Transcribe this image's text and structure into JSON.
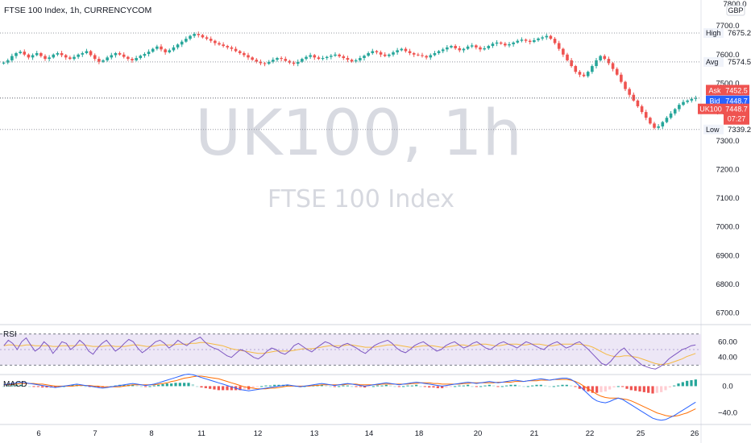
{
  "header": {
    "title": "FTSE 100 Index, 1h, CURRENCYCOM",
    "currency_top": "7800.0",
    "currency": "GBP"
  },
  "watermark": {
    "symbol": "UK100, 1h",
    "name": "FTSE 100 Index"
  },
  "colors": {
    "up": "#26a69a",
    "down": "#ef5350",
    "ask": "#ef5350",
    "bid": "#2962ff",
    "rsi_line": "#7e57c2",
    "rsi_ma": "#f5b942",
    "rsi_band": "#ede7f6",
    "macd_line": "#2962ff",
    "signal_line": "#ff6d00"
  },
  "levels": [
    {
      "label": "High",
      "price": 7675.2,
      "text": "7675.2"
    },
    {
      "label": "Avg",
      "price": 7574.5,
      "text": "7574.5"
    },
    {
      "label": "Low",
      "price": 7339.2,
      "text": "7339.2"
    }
  ],
  "tags": {
    "ask": {
      "label": "Ask",
      "price": 7452.5,
      "text": "7452.5"
    },
    "bid": {
      "label": "Bid",
      "price": 7448.7,
      "text": "7448.7"
    },
    "last": {
      "label": "UK100",
      "price": 7448.7,
      "text": "7448.7",
      "countdown": "07:27"
    }
  },
  "panes": {
    "rsi": {
      "label": "RSI",
      "ticks": [
        "60.00",
        "40.00"
      ]
    },
    "macd": {
      "label": "MACD",
      "ticks": [
        "0.0",
        "−40.0"
      ]
    }
  },
  "chart_data": {
    "type": "candlestick",
    "title": "FTSE 100 Index, 1h, CURRENCYCOM",
    "price_ticks": [
      7700.0,
      7600.0,
      7500.0,
      7400.0,
      7300.0,
      7200.0,
      7100.0,
      7000.0,
      6900.0,
      6800.0,
      6700.0
    ],
    "price_tick_labels": [
      "7700.0",
      "7600.0",
      "7500.0",
      "7400.0",
      "7300.0",
      "7200.0",
      "7100.0",
      "7000.0",
      "6900.0",
      "6800.0",
      "6700.0"
    ],
    "ylim": [
      6660,
      7790
    ],
    "x_tick_labels": [
      "6",
      "7",
      "8",
      "11",
      "12",
      "13",
      "14",
      "18",
      "20",
      "21",
      "22",
      "25",
      "26"
    ],
    "close_series": [
      7572,
      7580,
      7595,
      7605,
      7610,
      7600,
      7590,
      7598,
      7605,
      7595,
      7585,
      7590,
      7600,
      7605,
      7598,
      7590,
      7585,
      7592,
      7600,
      7605,
      7612,
      7598,
      7585,
      7575,
      7580,
      7590,
      7598,
      7605,
      7600,
      7592,
      7585,
      7580,
      7588,
      7596,
      7602,
      7610,
      7620,
      7628,
      7618,
      7608,
      7615,
      7625,
      7635,
      7645,
      7655,
      7665,
      7672,
      7668,
      7660,
      7655,
      7648,
      7640,
      7635,
      7630,
      7625,
      7620,
      7612,
      7605,
      7598,
      7590,
      7582,
      7575,
      7570,
      7568,
      7575,
      7582,
      7588,
      7585,
      7578,
      7572,
      7568,
      7575,
      7585,
      7592,
      7598,
      7590,
      7585,
      7588,
      7592,
      7596,
      7600,
      7594,
      7588,
      7582,
      7576,
      7580,
      7588,
      7596,
      7605,
      7612,
      7608,
      7600,
      7595,
      7600,
      7608,
      7615,
      7620,
      7612,
      7605,
      7600,
      7598,
      7595,
      7590,
      7598,
      7605,
      7612,
      7618,
      7625,
      7630,
      7622,
      7615,
      7620,
      7628,
      7632,
      7625,
      7618,
      7622,
      7630,
      7638,
      7642,
      7638,
      7632,
      7636,
      7642,
      7648,
      7652,
      7648,
      7644,
      7650,
      7656,
      7660,
      7665,
      7655,
      7640,
      7620,
      7600,
      7580,
      7560,
      7540,
      7530,
      7525,
      7540,
      7560,
      7580,
      7595,
      7585,
      7570,
      7550,
      7530,
      7505,
      7480,
      7460,
      7440,
      7420,
      7400,
      7380,
      7360,
      7345,
      7350,
      7365,
      7380,
      7395,
      7410,
      7425,
      7435,
      7440,
      7446,
      7448.7
    ],
    "rsi": {
      "ylim": [
        20,
        80
      ],
      "upper": 70,
      "lower": 30,
      "values": [
        55,
        62,
        58,
        50,
        60,
        65,
        56,
        48,
        52,
        60,
        55,
        45,
        52,
        60,
        58,
        50,
        55,
        62,
        57,
        48,
        44,
        52,
        58,
        62,
        55,
        48,
        52,
        58,
        63,
        60,
        52,
        46,
        50,
        55,
        60,
        62,
        58,
        52,
        56,
        62,
        58,
        55,
        60,
        63,
        66,
        60,
        55,
        52,
        50,
        46,
        42,
        40,
        45,
        50,
        48,
        44,
        40,
        38,
        42,
        48,
        52,
        50,
        46,
        44,
        48,
        55,
        58,
        54,
        50,
        47,
        52,
        56,
        60,
        58,
        54,
        52,
        56,
        58,
        55,
        52,
        48,
        45,
        50,
        55,
        58,
        60,
        62,
        58,
        52,
        48,
        46,
        50,
        55,
        58,
        60,
        56,
        52,
        48,
        50,
        55,
        58,
        60,
        56,
        52,
        54,
        58,
        60,
        56,
        52,
        50,
        54,
        58,
        60,
        57,
        55,
        52,
        56,
        60,
        58,
        55,
        52,
        50,
        55,
        58,
        60,
        56,
        52,
        54,
        58,
        60,
        55,
        50,
        44,
        38,
        32,
        30,
        35,
        42,
        48,
        52,
        45,
        40,
        35,
        30,
        28,
        26,
        25,
        28,
        32,
        38,
        42,
        46,
        50,
        52,
        55,
        56
      ],
      "ma": [
        55,
        56,
        56,
        55,
        55,
        56,
        56,
        55,
        55,
        55,
        55,
        54,
        54,
        55,
        55,
        55,
        55,
        56,
        56,
        55,
        54,
        54,
        54,
        55,
        55,
        54,
        54,
        54,
        55,
        56,
        56,
        55,
        54,
        54,
        55,
        56,
        56,
        56,
        56,
        57,
        57,
        57,
        58,
        58,
        59,
        59,
        58,
        57,
        56,
        55,
        53,
        51,
        50,
        49,
        48,
        47,
        46,
        45,
        45,
        46,
        47,
        48,
        48,
        48,
        48,
        49,
        50,
        51,
        51,
        51,
        52,
        53,
        54,
        55,
        55,
        55,
        55,
        56,
        56,
        55,
        54,
        53,
        53,
        53,
        54,
        55,
        56,
        56,
        56,
        55,
        54,
        53,
        53,
        54,
        55,
        55,
        55,
        54,
        53,
        53,
        54,
        55,
        56,
        56,
        55,
        55,
        56,
        57,
        57,
        56,
        55,
        55,
        56,
        57,
        57,
        57,
        56,
        56,
        57,
        57,
        57,
        56,
        55,
        55,
        56,
        57,
        57,
        57,
        57,
        57,
        56,
        55,
        53,
        50,
        47,
        44,
        42,
        41,
        41,
        42,
        42,
        41,
        40,
        38,
        36,
        34,
        32,
        31,
        31,
        32,
        34,
        36,
        38,
        41,
        43,
        45
      ],
      "values_note": ""
    },
    "macd": {
      "ylim": [
        -55,
        15
      ],
      "macd": [
        2,
        3,
        4,
        5,
        6,
        5,
        4,
        3,
        2,
        1,
        0,
        -1,
        -2,
        -1,
        0,
        1,
        2,
        3,
        2,
        1,
        0,
        -1,
        -2,
        -3,
        -2,
        -1,
        0,
        1,
        2,
        3,
        4,
        3,
        2,
        1,
        2,
        3,
        5,
        7,
        9,
        11,
        13,
        15,
        17,
        18,
        17,
        15,
        13,
        11,
        9,
        7,
        5,
        3,
        1,
        -1,
        -3,
        -5,
        -6,
        -7,
        -6,
        -5,
        -4,
        -3,
        -2,
        -1,
        0,
        1,
        2,
        1,
        0,
        -1,
        0,
        1,
        2,
        3,
        4,
        3,
        2,
        1,
        2,
        3,
        4,
        3,
        2,
        1,
        0,
        1,
        2,
        3,
        4,
        5,
        4,
        3,
        2,
        3,
        4,
        5,
        6,
        5,
        4,
        3,
        2,
        1,
        0,
        1,
        2,
        3,
        4,
        5,
        6,
        5,
        4,
        5,
        6,
        7,
        6,
        5,
        6,
        7,
        8,
        9,
        8,
        7,
        8,
        9,
        10,
        11,
        10,
        9,
        10,
        11,
        12,
        12,
        10,
        6,
        0,
        -6,
        -12,
        -18,
        -22,
        -24,
        -25,
        -23,
        -20,
        -18,
        -20,
        -24,
        -28,
        -32,
        -36,
        -40,
        -44,
        -48,
        -50,
        -51,
        -50,
        -47,
        -44,
        -40,
        -36,
        -32,
        -28,
        -24
      ],
      "signal": [
        2,
        2,
        3,
        3,
        4,
        4,
        4,
        4,
        3,
        3,
        2,
        1,
        0,
        0,
        0,
        0,
        0,
        1,
        1,
        1,
        1,
        0,
        0,
        -1,
        -1,
        -1,
        -1,
        -1,
        0,
        1,
        2,
        2,
        2,
        2,
        2,
        2,
        3,
        4,
        5,
        7,
        8,
        10,
        12,
        13,
        14,
        15,
        15,
        14,
        13,
        12,
        11,
        9,
        7,
        5,
        3,
        1,
        -1,
        -2,
        -3,
        -4,
        -4,
        -4,
        -3,
        -3,
        -2,
        -1,
        0,
        0,
        0,
        0,
        0,
        0,
        1,
        1,
        2,
        2,
        2,
        2,
        2,
        2,
        3,
        3,
        3,
        2,
        2,
        2,
        2,
        2,
        3,
        3,
        3,
        3,
        3,
        3,
        3,
        4,
        4,
        5,
        5,
        5,
        4,
        4,
        3,
        3,
        3,
        3,
        3,
        4,
        4,
        5,
        5,
        5,
        5,
        5,
        5,
        6,
        6,
        6,
        6,
        7,
        7,
        7,
        8,
        8,
        8,
        9,
        9,
        9,
        10,
        10,
        10,
        10,
        9,
        7,
        4,
        0,
        -4,
        -8,
        -12,
        -15,
        -17,
        -18,
        -18,
        -18,
        -19,
        -20,
        -22,
        -25,
        -28,
        -31,
        -34,
        -37,
        -40,
        -42,
        -44,
        -45,
        -45,
        -44,
        -42,
        -40,
        -37,
        -34
      ]
    }
  }
}
